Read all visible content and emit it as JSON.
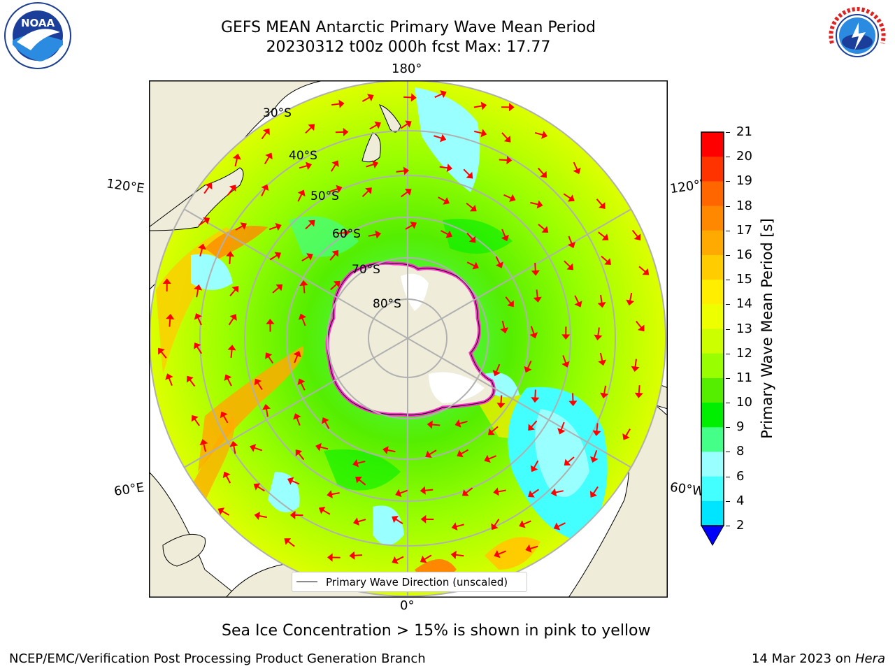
{
  "title": {
    "line1": "GEFS MEAN Antarctic Primary Wave Mean Period",
    "line2": "20230312 t00z 000h fcst   Max: 17.77"
  },
  "logos": {
    "left": {
      "icon": "noaa-logo-icon",
      "text": "NOAA"
    },
    "right": {
      "icon": "nws-logo-icon",
      "text": "NATIONAL WEATHER SERVICE"
    }
  },
  "map": {
    "projection": "south-polar-stereographic",
    "longitude_labels": {
      "top": "180°",
      "bottom": "0°",
      "upper_left": "120°E",
      "upper_right": "120°W",
      "lower_left": "60°E",
      "lower_right": "60°W"
    },
    "latitude_labels": [
      "30°S",
      "40°S",
      "50°S",
      "60°S",
      "70°S",
      "80°S"
    ],
    "colors": {
      "land": "#efedd9",
      "ice_edge": "#ff33cc",
      "arrow": "#ff0000",
      "grid": "#b0b0b0"
    }
  },
  "legend": {
    "label": "Primary Wave Direction (unscaled)"
  },
  "colorbar": {
    "label": "Primary Wave Mean Period [s]",
    "ticks": [
      "21",
      "20",
      "19",
      "18",
      "17",
      "16",
      "15",
      "14",
      "13",
      "12",
      "11",
      "10",
      "9",
      "8",
      "6",
      "4",
      "2"
    ],
    "colors": [
      "#ff0000",
      "#ff3300",
      "#ff6600",
      "#ff8800",
      "#ffaa00",
      "#ffcc00",
      "#ffee00",
      "#eeff00",
      "#ccff00",
      "#99ff00",
      "#55ee00",
      "#00ee00",
      "#44ff88",
      "#99ffff",
      "#44ffff",
      "#00e5ff",
      "#0088ff"
    ],
    "extend_color": "#0000ff"
  },
  "caption": "Sea Ice Concentration > 15% is shown in pink to yellow",
  "footer": {
    "left": "NCEP/EMC/Verification Post Processing Product Generation Branch",
    "right_date": "14 Mar 2023 on ",
    "right_host": "Hera"
  }
}
